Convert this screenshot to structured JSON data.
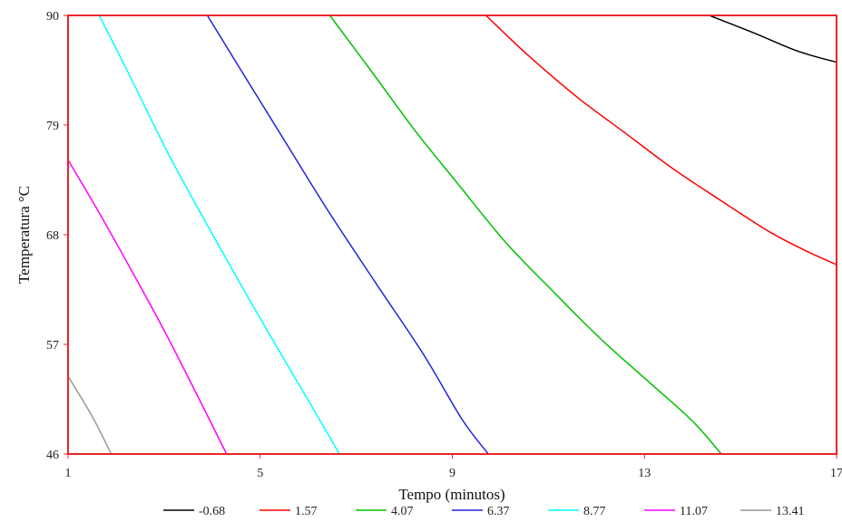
{
  "chart_data": {
    "type": "contour",
    "xlabel": "Tempo (minutos)",
    "ylabel": "Temperatura °C",
    "xlim": [
      1,
      17
    ],
    "ylim": [
      46,
      90
    ],
    "xticks": [
      "1",
      "5",
      "9",
      "13",
      "17"
    ],
    "yticks": [
      "46",
      "57",
      "68",
      "79",
      "90"
    ],
    "frame_color": "#e8262b",
    "grid": false,
    "legend_position": "bottom",
    "series": [
      {
        "name": "-0.68",
        "color": "#000000",
        "points": [
          [
            14.35,
            90
          ],
          [
            15.3,
            88.2
          ],
          [
            16.2,
            86.4
          ],
          [
            17,
            85.3
          ]
        ]
      },
      {
        "name": "1.57",
        "color": "#ff0000",
        "points": [
          [
            9.7,
            90
          ],
          [
            10.6,
            85.9
          ],
          [
            11.6,
            81.8
          ],
          [
            12.6,
            78.2
          ],
          [
            13.6,
            74.6
          ],
          [
            14.6,
            71.4
          ],
          [
            15.6,
            68.3
          ],
          [
            16.4,
            66.3
          ],
          [
            17,
            65.0
          ]
        ]
      },
      {
        "name": "4.07",
        "color": "#00c000",
        "points": [
          [
            6.45,
            90
          ],
          [
            7.3,
            84.5
          ],
          [
            8.2,
            78.6
          ],
          [
            9.1,
            73.2
          ],
          [
            10.1,
            67.3
          ],
          [
            11.1,
            62.3
          ],
          [
            12.1,
            57.5
          ],
          [
            13.1,
            53.2
          ],
          [
            14.0,
            49.3
          ],
          [
            14.6,
            46
          ]
        ]
      },
      {
        "name": "6.37",
        "color": "#2222dd",
        "points": [
          [
            3.9,
            90
          ],
          [
            4.6,
            84.5
          ],
          [
            5.5,
            77.5
          ],
          [
            6.4,
            70.5
          ],
          [
            7.4,
            63.2
          ],
          [
            8.4,
            56.0
          ],
          [
            9.2,
            49.5
          ],
          [
            9.75,
            46
          ]
        ]
      },
      {
        "name": "8.77",
        "color": "#00ffff",
        "points": [
          [
            1.65,
            90
          ],
          [
            2.3,
            83.8
          ],
          [
            3.1,
            76.0
          ],
          [
            4.0,
            68.1
          ],
          [
            5.0,
            59.6
          ],
          [
            6.0,
            51.4
          ],
          [
            6.65,
            46
          ]
        ]
      },
      {
        "name": "11.07",
        "color": "#ff00ff",
        "points": [
          [
            1,
            75.5
          ],
          [
            1.6,
            70.6
          ],
          [
            2.3,
            64.6
          ],
          [
            3.0,
            58.4
          ],
          [
            3.7,
            51.8
          ],
          [
            4.3,
            46
          ]
        ]
      },
      {
        "name": "13.41",
        "color": "#999999",
        "points": [
          [
            1,
            53.8
          ],
          [
            1.5,
            49.8
          ],
          [
            1.9,
            46
          ]
        ]
      }
    ]
  }
}
